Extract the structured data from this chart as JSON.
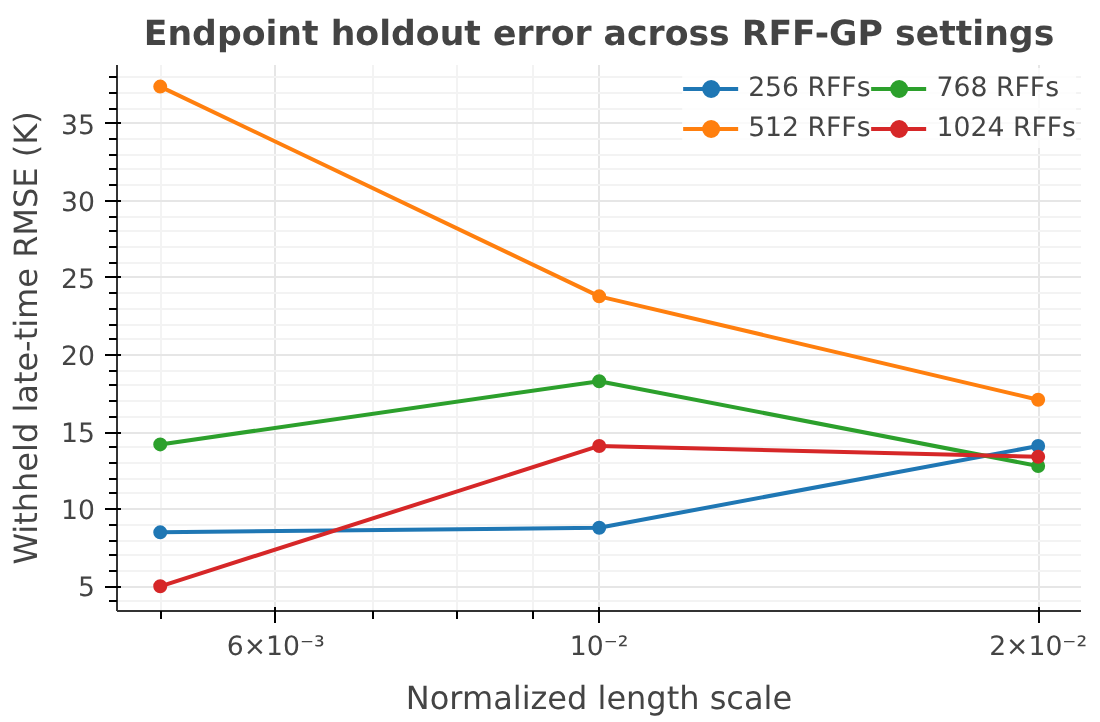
{
  "chart_data": {
    "type": "line",
    "title": "Endpoint holdout error across RFF-GP settings",
    "xlabel": "Normalized length scale",
    "ylabel": "Withheld late-time RMSE (K)",
    "x": [
      0.005,
      0.01,
      0.02
    ],
    "log": "x",
    "xlim": [
      0.00467,
      0.0214
    ],
    "xticks": [
      {
        "value": 0.006,
        "label": "6×10⁻³"
      },
      {
        "value": 0.01,
        "label": "10⁻²"
      },
      {
        "value": 0.02,
        "label": "2×10⁻²"
      }
    ],
    "ylim": [
      3.4,
      38.8
    ],
    "yticks": [
      5,
      10,
      15,
      20,
      25,
      30,
      35
    ],
    "grid": true,
    "legend": "top right",
    "marker": "circle",
    "line_style": "solid",
    "series": [
      {
        "name": "256 RFFs",
        "color": "#1f77b4",
        "values": [
          8.5,
          8.8,
          14.1
        ]
      },
      {
        "name": "512 RFFs",
        "color": "#ff7f0e",
        "values": [
          37.4,
          23.8,
          17.1
        ]
      },
      {
        "name": "768 RFFs",
        "color": "#2ca02c",
        "values": [
          14.2,
          18.3,
          12.8
        ]
      },
      {
        "name": "1024 RFFs",
        "color": "#d62728",
        "values": [
          5.0,
          14.1,
          13.4
        ]
      }
    ]
  }
}
